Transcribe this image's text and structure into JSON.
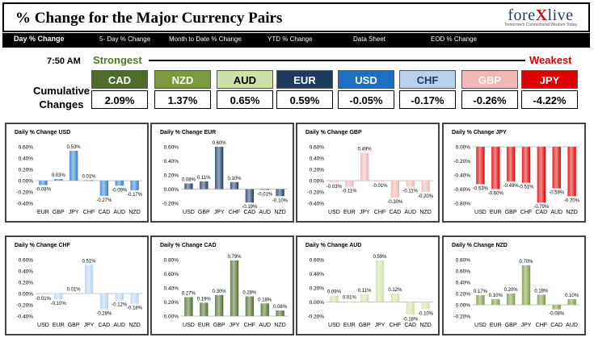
{
  "header": {
    "title": "% Change for the Major Currency Pairs",
    "logo_pre": "fore",
    "logo_x": "X",
    "logo_post": "live",
    "logo_tagline": "Tomorrow's Conventional Wisdom Today"
  },
  "nav": {
    "tabs": [
      {
        "label": "Day % Change"
      },
      {
        "label": "5- Day % Change"
      },
      {
        "label": "Month to Date % Change"
      },
      {
        "label": "YTD % Change"
      },
      {
        "label": "Data Sheet"
      },
      {
        "label": "EOD % Change"
      }
    ]
  },
  "summary": {
    "time": "7:50 AM",
    "strongest_label": "Strongest",
    "weakest_label": "Weakest",
    "cumulative_label_1": "Cumulative",
    "cumulative_label_2": "Changes",
    "tiles": [
      {
        "currency": "CAD",
        "value": "2.09%",
        "bg": "#4e6b2a",
        "fg": "#ffffff"
      },
      {
        "currency": "NZD",
        "value": "1.37%",
        "bg": "#7a9a3c",
        "fg": "#ffffff"
      },
      {
        "currency": "AUD",
        "value": "0.65%",
        "bg": "#cde0a6",
        "fg": "#000000"
      },
      {
        "currency": "EUR",
        "value": "0.59%",
        "bg": "#1f3a5f",
        "fg": "#ffffff"
      },
      {
        "currency": "USD",
        "value": "-0.05%",
        "bg": "#1c6fc1",
        "fg": "#ffffff"
      },
      {
        "currency": "CHF",
        "value": "-0.17%",
        "bg": "#b8d0ee",
        "fg": "#1f3a5f"
      },
      {
        "currency": "GBP",
        "value": "-0.26%",
        "bg": "#f2b6b6",
        "fg": "#ffffff"
      },
      {
        "currency": "JPY",
        "value": "-4.22%",
        "bg": "#e00000",
        "fg": "#ffffff"
      }
    ]
  },
  "chart_data": [
    {
      "type": "bar",
      "title": "Daily % Change USD",
      "categories": [
        "EUR",
        "GBP",
        "JPY",
        "CHF",
        "CAD",
        "AUD",
        "NZD"
      ],
      "values": [
        -0.08,
        0.03,
        0.53,
        0.01,
        -0.27,
        -0.09,
        -0.17
      ],
      "labels": [
        "-0.08%",
        "0.03%",
        "0.53%",
        "0.01%",
        "-0.27%",
        "-0.09%",
        "-0.17%"
      ],
      "yticks": [
        "0.60%",
        "0.40%",
        "0.20%",
        "0.00%",
        "-0.20%",
        "-0.40%"
      ],
      "ylim": [
        -0.4,
        0.6
      ],
      "color": "#2a7fd4"
    },
    {
      "type": "bar",
      "title": "Daily % Change EUR",
      "categories": [
        "USD",
        "GBP",
        "JPY",
        "CHF",
        "CAD",
        "AUD",
        "NZD"
      ],
      "values": [
        0.08,
        0.11,
        0.6,
        0.1,
        -0.19,
        -0.01,
        -0.1
      ],
      "labels": [
        "0.08%",
        "0.11%",
        "0.60%",
        "0.10%",
        "-0.19%",
        "-0.01%",
        "-0.10%"
      ],
      "yticks": [
        "0.60%",
        "0.40%",
        "0.20%",
        "0.00%",
        "-0.20%"
      ],
      "ylim": [
        -0.2,
        0.6
      ],
      "color": "#1f3a5f"
    },
    {
      "type": "bar",
      "title": "Daily % Change GBP",
      "categories": [
        "USD",
        "EUR",
        "JPY",
        "CHF",
        "CAD",
        "AUD",
        "NZD"
      ],
      "values": [
        -0.03,
        -0.11,
        0.49,
        -0.01,
        -0.3,
        -0.11,
        -0.2
      ],
      "labels": [
        "-0.03%",
        "-0.11%",
        "0.49%",
        "-0.01%",
        "-0.30%",
        "-0.11%",
        "-0.20%"
      ],
      "yticks": [
        "0.60%",
        "0.40%",
        "0.20%",
        "0.00%",
        "-0.20%",
        "-0.40%"
      ],
      "ylim": [
        -0.4,
        0.6
      ],
      "color": "#f0b4b4"
    },
    {
      "type": "bar",
      "title": "Daily % Change JPY",
      "categories": [
        "USD",
        "EUR",
        "GBP",
        "CHF",
        "CAD",
        "AUD",
        "NZD"
      ],
      "values": [
        -0.53,
        -0.6,
        -0.49,
        -0.51,
        -0.79,
        -0.59,
        -0.7
      ],
      "labels": [
        "-0.53%",
        "-0.60%",
        "-0.49%",
        "-0.51%",
        "-0.79%",
        "-0.59%",
        "-0.70%"
      ],
      "yticks": [
        "0.00%",
        "-0.20%",
        "-0.40%",
        "-0.60%",
        "-0.80%"
      ],
      "ylim": [
        -0.8,
        0.0
      ],
      "color": "#e00000"
    },
    {
      "type": "bar",
      "title": "Daily % Change CHF",
      "categories": [
        "USD",
        "EUR",
        "GBP",
        "JPY",
        "CAD",
        "AUD",
        "NZD"
      ],
      "values": [
        -0.01,
        -0.1,
        0.01,
        0.51,
        -0.28,
        -0.12,
        -0.18
      ],
      "labels": [
        "-0.01%",
        "-0.10%",
        "0.01%",
        "0.51%",
        "-0.28%",
        "-0.12%",
        "-0.18%"
      ],
      "yticks": [
        "0.60%",
        "0.40%",
        "0.20%",
        "0.00%",
        "-0.20%",
        "-0.40%"
      ],
      "ylim": [
        -0.4,
        0.6
      ],
      "color": "#b8d0ee"
    },
    {
      "type": "bar",
      "title": "Daily % Change CAD",
      "categories": [
        "USD",
        "EUR",
        "GBP",
        "JPY",
        "CHF",
        "AUD",
        "NZD"
      ],
      "values": [
        0.27,
        0.19,
        0.3,
        0.79,
        0.28,
        0.18,
        0.08
      ],
      "labels": [
        "0.27%",
        "0.19%",
        "0.30%",
        "0.79%",
        "0.28%",
        "0.18%",
        "0.08%"
      ],
      "yticks": [
        "0.80%",
        "0.60%",
        "0.40%",
        "0.20%",
        "0.00%"
      ],
      "ylim": [
        0.0,
        0.8
      ],
      "color": "#4e6b2a"
    },
    {
      "type": "bar",
      "title": "Daily % Change AUD",
      "categories": [
        "USD",
        "EUR",
        "GBP",
        "JPY",
        "CHF",
        "CAD",
        "NZD"
      ],
      "values": [
        0.09,
        0.01,
        0.11,
        0.59,
        0.12,
        -0.18,
        -0.1
      ],
      "labels": [
        "0.09%",
        "0.01%",
        "0.11%",
        "0.59%",
        "0.12%",
        "-0.18%",
        "-0.10%"
      ],
      "yticks": [
        "0.60%",
        "0.40%",
        "0.20%",
        "0.00%",
        "-0.20%"
      ],
      "ylim": [
        -0.2,
        0.6
      ],
      "color": "#cde0a6"
    },
    {
      "type": "bar",
      "title": "Daily % Change NZD",
      "categories": [
        "USD",
        "EUR",
        "GBP",
        "JPY",
        "CHF",
        "CAD",
        "AUD"
      ],
      "values": [
        0.17,
        0.1,
        0.2,
        0.7,
        0.18,
        -0.08,
        0.1
      ],
      "labels": [
        "0.17%",
        "0.10%",
        "0.20%",
        "0.70%",
        "0.18%",
        "-0.08%",
        "0.10%"
      ],
      "yticks": [
        "0.80%",
        "0.60%",
        "0.40%",
        "0.20%",
        "0.00%",
        "-0.20%"
      ],
      "ylim": [
        -0.2,
        0.8
      ],
      "color": "#7a9a3c"
    }
  ]
}
